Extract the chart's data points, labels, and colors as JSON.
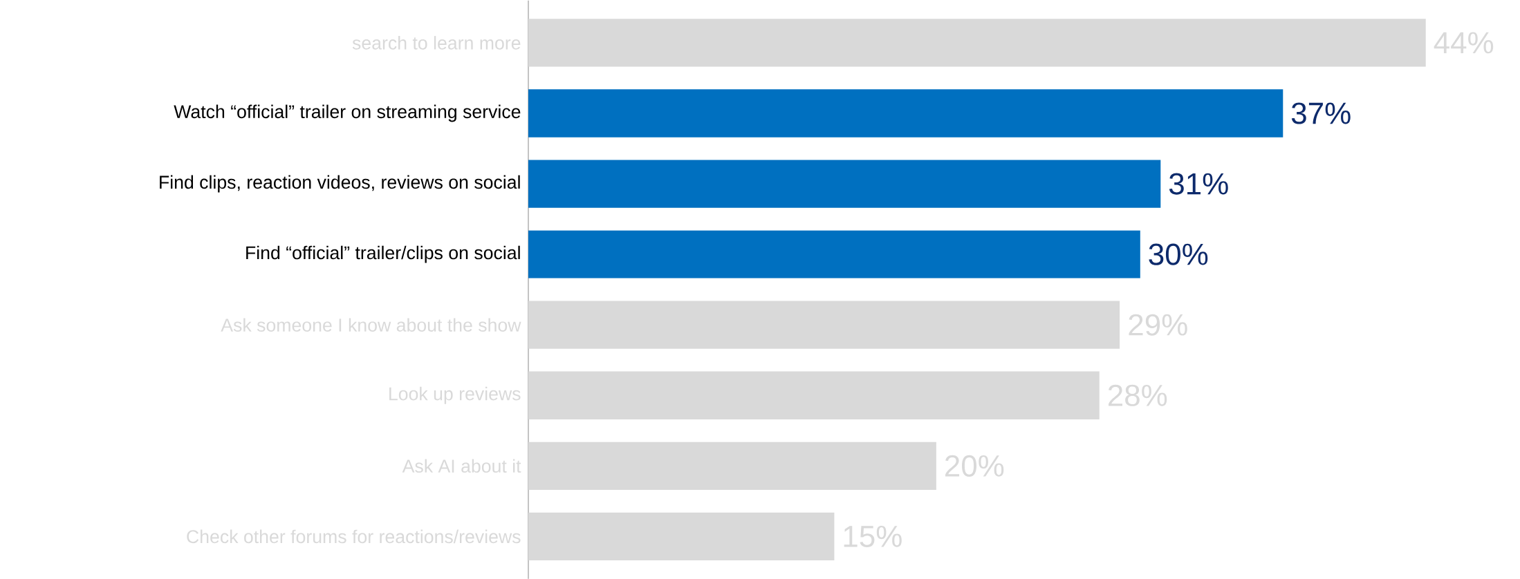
{
  "chart_data": {
    "type": "bar",
    "orientation": "horizontal",
    "categories": [
      "search to learn more",
      "Watch “official” trailer on streaming service",
      "Find clips, reaction videos, reviews on social",
      "Find “official” trailer/clips on social",
      "Ask someone I know about the show",
      "Look up reviews",
      "Ask AI about it",
      "Check other forums for reactions/reviews"
    ],
    "values": [
      44,
      37,
      31,
      30,
      29,
      28,
      20,
      15
    ],
    "value_labels": [
      "44%",
      "37%",
      "31%",
      "30%",
      "29%",
      "28%",
      "20%",
      "15%"
    ],
    "colors": [
      "#d9d9d9",
      "#0070c0",
      "#0070c0",
      "#0070c0",
      "#d9d9d9",
      "#d9d9d9",
      "#d9d9d9",
      "#d9d9d9"
    ]
  }
}
